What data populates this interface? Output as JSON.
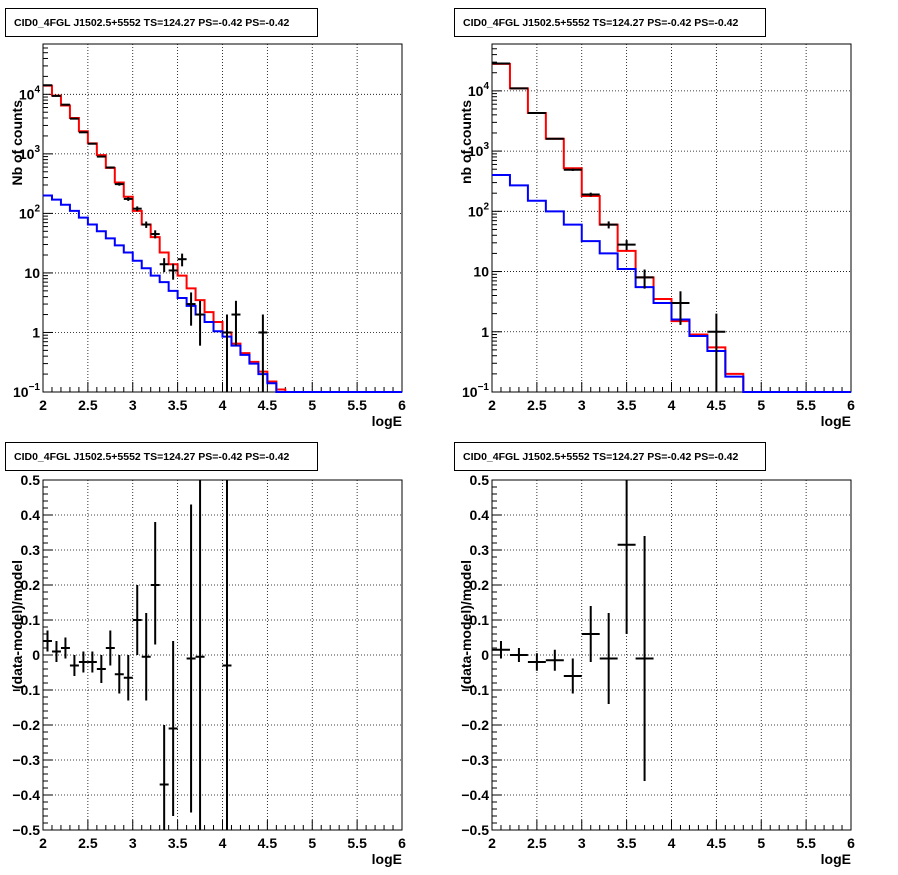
{
  "chart_data": [
    {
      "type": "line",
      "title": "CID0_4FGL J1502.5+5552 TS=124.27 PS=-0.42 PS=-0.42",
      "xlabel": "logE",
      "ylabel": "Nb of counts",
      "xlim": [
        2,
        6
      ],
      "ylim": [
        0.1,
        70000
      ],
      "yscale": "log",
      "grid": true,
      "xticks": [
        "2",
        "2.5",
        "3",
        "3.5",
        "4",
        "4.5",
        "5",
        "5.5",
        "6"
      ],
      "yticks": [
        {
          "v": 0.1,
          "main": "10",
          "sup": "−1"
        },
        {
          "v": 1,
          "main": "1",
          "sup": ""
        },
        {
          "v": 10,
          "main": "10",
          "sup": ""
        },
        {
          "v": 100,
          "main": "10",
          "sup": "2"
        },
        {
          "v": 1000,
          "main": "10",
          "sup": "3"
        },
        {
          "v": 10000,
          "main": "10",
          "sup": "4"
        }
      ],
      "series": [
        {
          "color": "#ff0000",
          "edges": [
            2,
            2.1,
            2.2,
            2.3,
            2.4,
            2.5,
            2.6,
            2.7,
            2.8,
            2.9,
            3,
            3.1,
            3.2,
            3.3,
            3.4,
            3.5,
            3.6,
            3.7,
            3.8,
            3.9,
            4,
            4.1,
            4.2,
            4.3,
            4.4,
            4.5,
            4.6,
            4.7,
            4.8,
            4.9,
            5,
            5.1,
            5.2,
            5.3,
            5.4,
            5.5,
            5.6,
            5.7,
            5.8,
            5.9,
            6
          ],
          "values": [
            14000,
            9500,
            6500,
            4000,
            2400,
            1500,
            950,
            580,
            330,
            190,
            110,
            65,
            40,
            22,
            14,
            9,
            5.5,
            3.5,
            2.2,
            1.5,
            1.0,
            0.65,
            0.45,
            0.32,
            0.22,
            0.15,
            0.11,
            0.1,
            0.1,
            0.1,
            0.1,
            0.1,
            0.1,
            0.1,
            0.1,
            0.1,
            0.1,
            0.1,
            0.1,
            0.1
          ]
        },
        {
          "color": "#0000ff",
          "edges": [
            2,
            2.1,
            2.2,
            2.3,
            2.4,
            2.5,
            2.6,
            2.7,
            2.8,
            2.9,
            3,
            3.1,
            3.2,
            3.3,
            3.4,
            3.5,
            3.6,
            3.7,
            3.8,
            3.9,
            4,
            4.1,
            4.2,
            4.3,
            4.4,
            4.5,
            4.6,
            4.7,
            4.8,
            4.9,
            5,
            5.1,
            5.2,
            5.3,
            5.4,
            5.5,
            5.6,
            5.7,
            5.8,
            5.9,
            6
          ],
          "values": [
            200,
            170,
            140,
            110,
            85,
            65,
            50,
            38,
            29,
            22,
            16,
            12,
            9,
            7,
            5,
            3.8,
            2.8,
            2.0,
            1.5,
            1.05,
            0.85,
            0.6,
            0.42,
            0.3,
            0.2,
            0.14,
            0.1,
            0.1,
            0.1,
            0.1,
            0.1,
            0.1,
            0.1,
            0.1,
            0.1,
            0.1,
            0.1,
            0.1,
            0.1,
            0.1
          ]
        }
      ],
      "points": [
        {
          "x": 2.05,
          "y": 14200,
          "xerr": 0.05,
          "ylo": 14080,
          "yhi": 14320
        },
        {
          "x": 2.15,
          "y": 9400,
          "xerr": 0.05,
          "ylo": 9300,
          "yhi": 9500
        },
        {
          "x": 2.25,
          "y": 6700,
          "xerr": 0.05,
          "ylo": 6620,
          "yhi": 6780
        },
        {
          "x": 2.35,
          "y": 3900,
          "xerr": 0.05,
          "ylo": 3840,
          "yhi": 3960
        },
        {
          "x": 2.45,
          "y": 2300,
          "xerr": 0.05,
          "ylo": 2250,
          "yhi": 2350
        },
        {
          "x": 2.55,
          "y": 1480,
          "xerr": 0.05,
          "ylo": 1440,
          "yhi": 1520
        },
        {
          "x": 2.65,
          "y": 900,
          "xerr": 0.05,
          "ylo": 870,
          "yhi": 930
        },
        {
          "x": 2.75,
          "y": 590,
          "xerr": 0.05,
          "ylo": 566,
          "yhi": 614
        },
        {
          "x": 2.85,
          "y": 310,
          "xerr": 0.05,
          "ylo": 292,
          "yhi": 328
        },
        {
          "x": 2.95,
          "y": 175,
          "xerr": 0.05,
          "ylo": 162,
          "yhi": 188
        },
        {
          "x": 3.05,
          "y": 120,
          "xerr": 0.05,
          "ylo": 109,
          "yhi": 131
        },
        {
          "x": 3.15,
          "y": 65,
          "xerr": 0.05,
          "ylo": 57,
          "yhi": 73
        },
        {
          "x": 3.25,
          "y": 45,
          "xerr": 0.05,
          "ylo": 38,
          "yhi": 52
        },
        {
          "x": 3.35,
          "y": 14,
          "xerr": 0.05,
          "ylo": 10.3,
          "yhi": 17.7
        },
        {
          "x": 3.45,
          "y": 11,
          "xerr": 0.05,
          "ylo": 7.7,
          "yhi": 14.3
        },
        {
          "x": 3.55,
          "y": 17,
          "xerr": 0.05,
          "ylo": 12.9,
          "yhi": 21.1
        },
        {
          "x": 3.65,
          "y": 3,
          "xerr": 0.05,
          "ylo": 1.3,
          "yhi": 4.7
        },
        {
          "x": 3.75,
          "y": 2,
          "xerr": 0.05,
          "ylo": 0.6,
          "yhi": 3.4
        },
        {
          "x": 4.05,
          "y": 1,
          "xerr": 0.05,
          "ylo": 0.1,
          "yhi": 2.0
        },
        {
          "x": 4.15,
          "y": 2,
          "xerr": 0.05,
          "ylo": 0.6,
          "yhi": 3.4
        },
        {
          "x": 4.45,
          "y": 1,
          "xerr": 0.05,
          "ylo": 0.1,
          "yhi": 2.0
        }
      ]
    },
    {
      "type": "line",
      "title": "CID0_4FGL J1502.5+5552 TS=124.27 PS=-0.42 PS=-0.42",
      "xlabel": "logE",
      "ylabel": "nb of counts",
      "xlim": [
        2,
        6
      ],
      "ylim": [
        0.1,
        60000
      ],
      "yscale": "log",
      "grid": true,
      "xticks": [
        "2",
        "2.5",
        "3",
        "3.5",
        "4",
        "4.5",
        "5",
        "5.5",
        "6"
      ],
      "yticks": [
        {
          "v": 0.1,
          "main": "10",
          "sup": "−1"
        },
        {
          "v": 1,
          "main": "1",
          "sup": ""
        },
        {
          "v": 10,
          "main": "10",
          "sup": ""
        },
        {
          "v": 100,
          "main": "10",
          "sup": "2"
        },
        {
          "v": 1000,
          "main": "10",
          "sup": "3"
        },
        {
          "v": 10000,
          "main": "10",
          "sup": "4"
        }
      ],
      "series": [
        {
          "color": "#ff0000",
          "edges": [
            2,
            2.2,
            2.4,
            2.6,
            2.8,
            3,
            3.2,
            3.4,
            3.6,
            3.8,
            4,
            4.2,
            4.4,
            4.6,
            4.8,
            5,
            5.2,
            5.4,
            5.6,
            5.8,
            6
          ],
          "values": [
            28000,
            11000,
            4300,
            1600,
            520,
            180,
            60,
            22,
            8,
            3.5,
            1.5,
            0.9,
            0.55,
            0.2,
            0.1,
            0.1,
            0.1,
            0.1,
            0.1,
            0.1
          ]
        },
        {
          "color": "#0000ff",
          "edges": [
            2,
            2.2,
            2.4,
            2.6,
            2.8,
            3,
            3.2,
            3.4,
            3.6,
            3.8,
            4,
            4.2,
            4.4,
            4.6,
            4.8,
            5,
            5.2,
            5.4,
            5.6,
            5.8,
            6
          ],
          "values": [
            400,
            270,
            150,
            100,
            60,
            32,
            20,
            11,
            5.5,
            3,
            1.6,
            0.85,
            0.48,
            0.18,
            0.1,
            0.1,
            0.1,
            0.1,
            0.1,
            0.1
          ]
        }
      ],
      "points": [
        {
          "x": 2.1,
          "y": 28500,
          "xerr": 0.1,
          "ylo": 28330,
          "yhi": 28670
        },
        {
          "x": 2.3,
          "y": 11000,
          "xerr": 0.1,
          "ylo": 10900,
          "yhi": 11100
        },
        {
          "x": 2.5,
          "y": 4300,
          "xerr": 0.1,
          "ylo": 4230,
          "yhi": 4370
        },
        {
          "x": 2.7,
          "y": 1600,
          "xerr": 0.1,
          "ylo": 1560,
          "yhi": 1640
        },
        {
          "x": 2.9,
          "y": 490,
          "xerr": 0.1,
          "ylo": 468,
          "yhi": 512
        },
        {
          "x": 3.1,
          "y": 190,
          "xerr": 0.1,
          "ylo": 176,
          "yhi": 204
        },
        {
          "x": 3.3,
          "y": 60,
          "xerr": 0.1,
          "ylo": 52,
          "yhi": 68
        },
        {
          "x": 3.5,
          "y": 28,
          "xerr": 0.1,
          "ylo": 22.7,
          "yhi": 33.3
        },
        {
          "x": 3.7,
          "y": 8,
          "xerr": 0.1,
          "ylo": 5.2,
          "yhi": 10.8
        },
        {
          "x": 4.1,
          "y": 3,
          "xerr": 0.1,
          "ylo": 1.3,
          "yhi": 4.7
        },
        {
          "x": 4.5,
          "y": 1,
          "xerr": 0.1,
          "ylo": 0.1,
          "yhi": 2.0
        }
      ]
    },
    {
      "type": "scatter",
      "title": "CID0_4FGL J1502.5+5552 TS=124.27 PS=-0.42 PS=-0.42",
      "xlabel": "logE",
      "ylabel": "(data-model)/model",
      "xlim": [
        2,
        6
      ],
      "ylim": [
        -0.5,
        0.5
      ],
      "yscale": "linear",
      "grid": true,
      "xticks": [
        "2",
        "2.5",
        "3",
        "3.5",
        "4",
        "4.5",
        "5",
        "5.5",
        "6"
      ],
      "yticks": [
        {
          "v": -0.5,
          "main": "−0.5",
          "sup": ""
        },
        {
          "v": -0.4,
          "main": "−0.4",
          "sup": ""
        },
        {
          "v": -0.3,
          "main": "−0.3",
          "sup": ""
        },
        {
          "v": -0.2,
          "main": "−0.2",
          "sup": ""
        },
        {
          "v": -0.1,
          "main": "−0.1",
          "sup": ""
        },
        {
          "v": 0,
          "main": "0",
          "sup": ""
        },
        {
          "v": 0.1,
          "main": "0.1",
          "sup": ""
        },
        {
          "v": 0.2,
          "main": "0.2",
          "sup": ""
        },
        {
          "v": 0.3,
          "main": "0.3",
          "sup": ""
        },
        {
          "v": 0.4,
          "main": "0.4",
          "sup": ""
        },
        {
          "v": 0.5,
          "main": "0.5",
          "sup": ""
        }
      ],
      "series": [],
      "points": [
        {
          "x": 2.05,
          "y": 0.04,
          "xerr": 0.05,
          "ylo": 0.01,
          "yhi": 0.07
        },
        {
          "x": 2.15,
          "y": 0.01,
          "xerr": 0.05,
          "ylo": -0.02,
          "yhi": 0.04
        },
        {
          "x": 2.25,
          "y": 0.02,
          "xerr": 0.05,
          "ylo": -0.01,
          "yhi": 0.05
        },
        {
          "x": 2.35,
          "y": -0.03,
          "xerr": 0.05,
          "ylo": -0.06,
          "yhi": 0.0
        },
        {
          "x": 2.45,
          "y": -0.02,
          "xerr": 0.05,
          "ylo": -0.05,
          "yhi": 0.01
        },
        {
          "x": 2.55,
          "y": -0.02,
          "xerr": 0.05,
          "ylo": -0.05,
          "yhi": 0.01
        },
        {
          "x": 2.65,
          "y": -0.04,
          "xerr": 0.05,
          "ylo": -0.08,
          "yhi": 0.0
        },
        {
          "x": 2.75,
          "y": 0.02,
          "xerr": 0.05,
          "ylo": -0.03,
          "yhi": 0.07
        },
        {
          "x": 2.85,
          "y": -0.055,
          "xerr": 0.05,
          "ylo": -0.11,
          "yhi": 0.0
        },
        {
          "x": 2.95,
          "y": -0.065,
          "xerr": 0.05,
          "ylo": -0.13,
          "yhi": 0.0
        },
        {
          "x": 3.05,
          "y": 0.1,
          "xerr": 0.05,
          "ylo": 0.0,
          "yhi": 0.2
        },
        {
          "x": 3.15,
          "y": -0.005,
          "xerr": 0.05,
          "ylo": -0.13,
          "yhi": 0.12
        },
        {
          "x": 3.25,
          "y": 0.2,
          "xerr": 0.05,
          "ylo": 0.03,
          "yhi": 0.38
        },
        {
          "x": 3.35,
          "y": -0.37,
          "xerr": 0.05,
          "ylo": -0.55,
          "yhi": -0.2
        },
        {
          "x": 3.45,
          "y": -0.21,
          "xerr": 0.05,
          "ylo": -0.46,
          "yhi": 0.04
        },
        {
          "x": 3.65,
          "y": -0.01,
          "xerr": 0.05,
          "ylo": -0.45,
          "yhi": 0.43
        },
        {
          "x": 3.75,
          "y": -0.005,
          "xerr": 0.05,
          "ylo": -0.6,
          "yhi": 0.6
        },
        {
          "x": 4.05,
          "y": -0.03,
          "xerr": 0.05,
          "ylo": -0.6,
          "yhi": 0.6
        }
      ]
    },
    {
      "type": "scatter",
      "title": "CID0_4FGL J1502.5+5552 TS=124.27 PS=-0.42 PS=-0.42",
      "xlabel": "logE",
      "ylabel": "(data-model)/model",
      "xlim": [
        2,
        6
      ],
      "ylim": [
        -0.5,
        0.5
      ],
      "yscale": "linear",
      "grid": true,
      "xticks": [
        "2",
        "2.5",
        "3",
        "3.5",
        "4",
        "4.5",
        "5",
        "5.5",
        "6"
      ],
      "yticks": [
        {
          "v": -0.5,
          "main": "−0.5",
          "sup": ""
        },
        {
          "v": -0.4,
          "main": "−0.4",
          "sup": ""
        },
        {
          "v": -0.3,
          "main": "−0.3",
          "sup": ""
        },
        {
          "v": -0.2,
          "main": "−0.2",
          "sup": ""
        },
        {
          "v": -0.1,
          "main": "−0.1",
          "sup": ""
        },
        {
          "v": 0,
          "main": "0",
          "sup": ""
        },
        {
          "v": 0.1,
          "main": "0.1",
          "sup": ""
        },
        {
          "v": 0.2,
          "main": "0.2",
          "sup": ""
        },
        {
          "v": 0.3,
          "main": "0.3",
          "sup": ""
        },
        {
          "v": 0.4,
          "main": "0.4",
          "sup": ""
        },
        {
          "v": 0.5,
          "main": "0.5",
          "sup": ""
        }
      ],
      "series": [],
      "points": [
        {
          "x": 2.1,
          "y": 0.015,
          "xerr": 0.1,
          "ylo": -0.01,
          "yhi": 0.04
        },
        {
          "x": 2.3,
          "y": 0.0,
          "xerr": 0.1,
          "ylo": -0.02,
          "yhi": 0.02
        },
        {
          "x": 2.5,
          "y": -0.02,
          "xerr": 0.1,
          "ylo": -0.045,
          "yhi": 0.005
        },
        {
          "x": 2.7,
          "y": -0.015,
          "xerr": 0.1,
          "ylo": -0.045,
          "yhi": 0.015
        },
        {
          "x": 2.9,
          "y": -0.06,
          "xerr": 0.1,
          "ylo": -0.11,
          "yhi": -0.01
        },
        {
          "x": 3.1,
          "y": 0.06,
          "xerr": 0.1,
          "ylo": -0.02,
          "yhi": 0.14
        },
        {
          "x": 3.3,
          "y": -0.01,
          "xerr": 0.1,
          "ylo": -0.14,
          "yhi": 0.12
        },
        {
          "x": 3.5,
          "y": 0.315,
          "xerr": 0.1,
          "ylo": 0.06,
          "yhi": 0.57
        },
        {
          "x": 3.7,
          "y": -0.01,
          "xerr": 0.1,
          "ylo": -0.36,
          "yhi": 0.34
        }
      ]
    }
  ]
}
